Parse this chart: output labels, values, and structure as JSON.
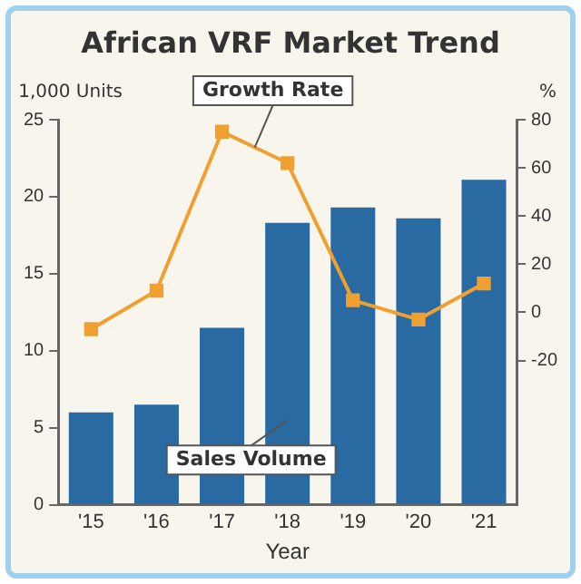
{
  "chart_data": {
    "type": "bar",
    "title": "African VRF Market Trend",
    "xlabel": "Year",
    "ylabel": "1,000 Units",
    "y2label": "%",
    "categories": [
      "'15",
      "'16",
      "'17",
      "'18",
      "'19",
      "'20",
      "'21"
    ],
    "series": [
      {
        "name": "Sales Volume",
        "color": "#2a6aa3",
        "values": [
          6,
          6.5,
          11.5,
          18.3,
          19.3,
          18.6,
          21.1
        ]
      },
      {
        "name": "Growth Rate",
        "type": "line",
        "axis": "y2",
        "color": "#f0a030",
        "values": [
          -7,
          9,
          75,
          62,
          5,
          -3,
          12
        ]
      }
    ],
    "ylim": [
      0,
      25
    ],
    "yticks": [
      0,
      5,
      10,
      15,
      20,
      25
    ],
    "y2lim": [
      -80,
      80
    ],
    "y2ticks": [
      -20,
      0,
      20,
      40,
      60,
      80
    ],
    "grid": false,
    "legend": false,
    "marker": "square",
    "line_style": "solid"
  }
}
